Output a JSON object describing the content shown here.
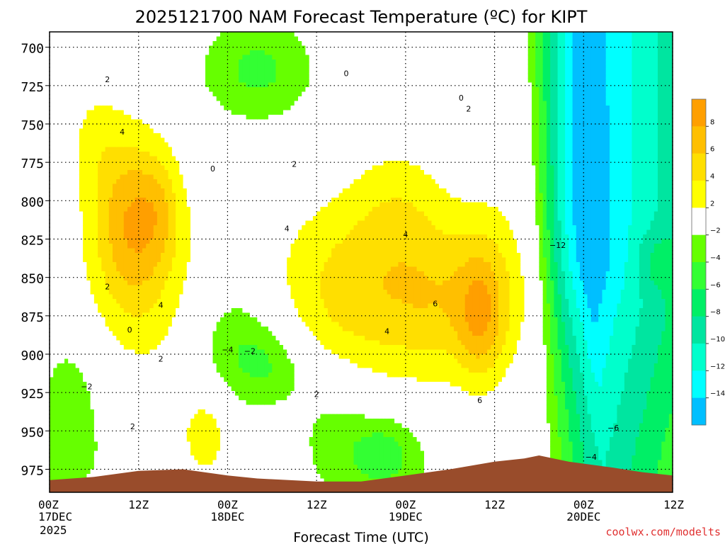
{
  "chart_data": {
    "type": "heatmap",
    "title": "2025121700 NAM Forecast Temperature (ºC) for KIPT",
    "xlabel": "Forecast Time (UTC)",
    "ylabel": "",
    "credit": "coolwx.com/modelts",
    "x_unit": "hours since 2025-12-17 00Z",
    "xlim": [
      0,
      84
    ],
    "ylim": [
      990,
      690
    ],
    "y_ticks": [
      700,
      725,
      750,
      775,
      800,
      825,
      850,
      875,
      900,
      925,
      950,
      975
    ],
    "x_ticks": [
      {
        "hour": 0,
        "label": "00Z",
        "date": "17DEC",
        "year": "2025"
      },
      {
        "hour": 12,
        "label": "12Z",
        "date": "",
        "year": ""
      },
      {
        "hour": 24,
        "label": "00Z",
        "date": "18DEC",
        "year": ""
      },
      {
        "hour": 36,
        "label": "12Z",
        "date": "",
        "year": ""
      },
      {
        "hour": 48,
        "label": "00Z",
        "date": "19DEC",
        "year": ""
      },
      {
        "hour": 60,
        "label": "12Z",
        "date": "",
        "year": ""
      },
      {
        "hour": 72,
        "label": "00Z",
        "date": "20DEC",
        "year": ""
      },
      {
        "hour": 84,
        "label": "12Z",
        "date": "",
        "year": ""
      }
    ],
    "colorbar": {
      "levels": [
        10,
        8,
        6,
        4,
        2,
        -2,
        -4,
        -6,
        -8,
        -10,
        -12,
        -14,
        -16
      ],
      "labels": [
        "8",
        "6",
        "4",
        "2",
        "−2",
        "−4",
        "−6",
        "−8",
        "−10",
        "−12",
        "−14"
      ],
      "colors": [
        "#ff9f00",
        "#ffbf00",
        "#ffdf00",
        "#ffff00",
        "#ffffff",
        "#66ff00",
        "#33ff33",
        "#00ef66",
        "#00e5a0",
        "#00ffcc",
        "#00ffff",
        "#00bfff"
      ]
    },
    "surface_pressure": [
      [
        0,
        982
      ],
      [
        6,
        980
      ],
      [
        12,
        976
      ],
      [
        18,
        975
      ],
      [
        24,
        979
      ],
      [
        28,
        981
      ],
      [
        36,
        983
      ],
      [
        42,
        983
      ],
      [
        48,
        979
      ],
      [
        54,
        975
      ],
      [
        60,
        970
      ],
      [
        64,
        968
      ],
      [
        66,
        966
      ],
      [
        70,
        970
      ],
      [
        76,
        974
      ],
      [
        80,
        977
      ],
      [
        84,
        979
      ]
    ],
    "contour_labels": [
      {
        "text": "2",
        "hour": 7.8,
        "p": 721
      },
      {
        "text": "4",
        "hour": 9.8,
        "p": 755
      },
      {
        "text": "2",
        "hour": 7.8,
        "p": 856
      },
      {
        "text": "4",
        "hour": 15.0,
        "p": 868
      },
      {
        "text": "2",
        "hour": 15.0,
        "p": 903
      },
      {
        "text": "0",
        "hour": 10.8,
        "p": 884
      },
      {
        "text": "−2",
        "hour": 5.0,
        "p": 921
      },
      {
        "text": "2",
        "hour": 11.2,
        "p": 947
      },
      {
        "text": "0",
        "hour": 22.0,
        "p": 779
      },
      {
        "text": "−4",
        "hour": 24.0,
        "p": 897
      },
      {
        "text": "−2",
        "hour": 27.0,
        "p": 898
      },
      {
        "text": "2",
        "hour": 33.0,
        "p": 776
      },
      {
        "text": "4",
        "hour": 32.0,
        "p": 818
      },
      {
        "text": "2",
        "hour": 36.0,
        "p": 926
      },
      {
        "text": "0",
        "hour": 40.0,
        "p": 717
      },
      {
        "text": "4",
        "hour": 45.5,
        "p": 885
      },
      {
        "text": "4",
        "hour": 48.0,
        "p": 822
      },
      {
        "text": "0",
        "hour": 55.5,
        "p": 733
      },
      {
        "text": "2",
        "hour": 56.5,
        "p": 740
      },
      {
        "text": "6",
        "hour": 52.0,
        "p": 867
      },
      {
        "text": "6",
        "hour": 58.0,
        "p": 930
      },
      {
        "text": "−12",
        "hour": 68.5,
        "p": 829
      },
      {
        "text": "−6",
        "hour": 76.0,
        "p": 948
      },
      {
        "text": "−4",
        "hour": 73.0,
        "p": 967
      }
    ]
  }
}
